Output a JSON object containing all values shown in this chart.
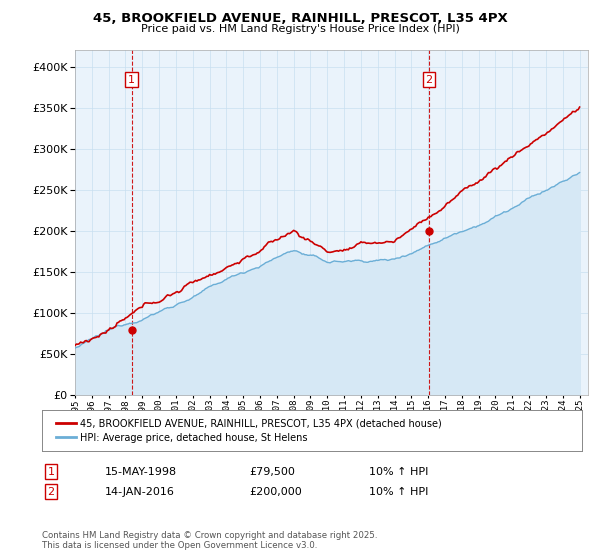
{
  "title_line1": "45, BROOKFIELD AVENUE, RAINHILL, PRESCOT, L35 4PX",
  "title_line2": "Price paid vs. HM Land Registry's House Price Index (HPI)",
  "legend_label1": "45, BROOKFIELD AVENUE, RAINHILL, PRESCOT, L35 4PX (detached house)",
  "legend_label2": "HPI: Average price, detached house, St Helens",
  "transaction1_label": "1",
  "transaction1_date": "15-MAY-1998",
  "transaction1_price": "£79,500",
  "transaction1_hpi": "10% ↑ HPI",
  "transaction2_label": "2",
  "transaction2_date": "14-JAN-2016",
  "transaction2_price": "£200,000",
  "transaction2_hpi": "10% ↑ HPI",
  "copyright_text": "Contains HM Land Registry data © Crown copyright and database right 2025.\nThis data is licensed under the Open Government Licence v3.0.",
  "hpi_color": "#6baed6",
  "hpi_fill_color": "#d6e8f5",
  "price_color": "#cc0000",
  "vline_color": "#cc0000",
  "background_color": "#ffffff",
  "chart_bg_color": "#eaf3fb",
  "ylim_min": 0,
  "ylim_max": 420000,
  "grid_color": "#c8dff0"
}
